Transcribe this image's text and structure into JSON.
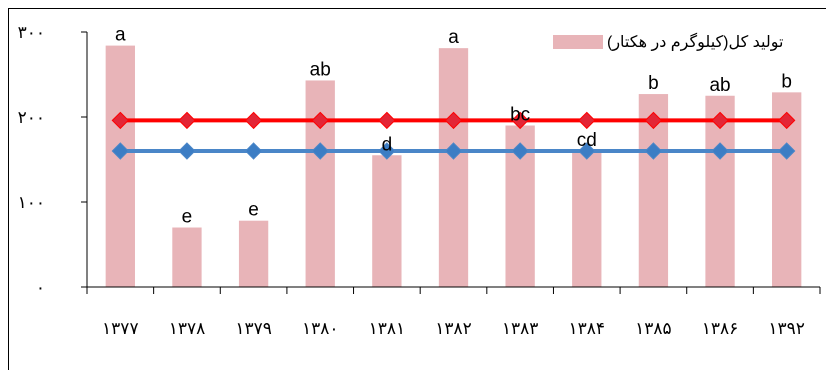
{
  "chart_data": {
    "type": "bar",
    "categories": [
      "۱۳۷۷",
      "۱۳۷۸",
      "۱۳۷۹",
      "۱۳۸۰",
      "۱۳۸۱",
      "۱۳۸۲",
      "۱۳۸۳",
      "۱۳۸۴",
      "۱۳۸۵",
      "۱۳۸۶",
      "۱۳۹۲"
    ],
    "series": [
      {
        "name": "تولید کل(کیلوگرم در هکتار)",
        "kind": "bar",
        "color": "#e8b4b8",
        "values": [
          284,
          70,
          78,
          243,
          155,
          281,
          190,
          160,
          227,
          225,
          229
        ],
        "labels": [
          "a",
          "e",
          "e",
          "ab",
          "d",
          "a",
          "bc",
          "cd",
          "b",
          "ab",
          "b"
        ]
      },
      {
        "kind": "line",
        "color": "#ff0000",
        "marker_color": "#e32636",
        "values": [
          196,
          196,
          196,
          196,
          196,
          196,
          196,
          196,
          196,
          196,
          196
        ]
      },
      {
        "kind": "line",
        "color": "#4a86c8",
        "marker_color": "#3c7dc4",
        "values": [
          160,
          160,
          160,
          160,
          160,
          160,
          160,
          160,
          160,
          160,
          160
        ]
      }
    ],
    "yticks": [
      0,
      100,
      200,
      300
    ],
    "ytick_labels": [
      "۰",
      "۱۰۰",
      "۲۰۰",
      "۳۰۰"
    ],
    "ylim": [
      0,
      300
    ],
    "grid": false,
    "legend_position": "top-right"
  }
}
